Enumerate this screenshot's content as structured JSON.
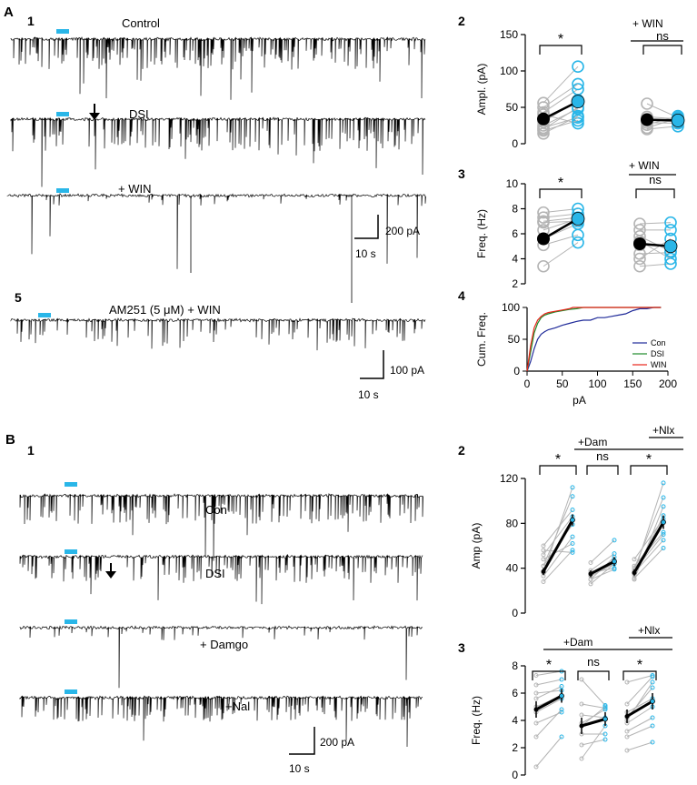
{
  "colors": {
    "cyan": "#29b6e8",
    "grey": "#b4b4b4",
    "black": "#000000",
    "con": "#1f2a99",
    "dsi": "#1e8a2a",
    "win": "#e8261b"
  },
  "panelA": {
    "letter": "A",
    "sub1": "1",
    "sub2": "2",
    "sub3": "3",
    "sub4": "4",
    "sub5": "5",
    "traces": {
      "control": "Control",
      "dsi": "DSI",
      "win": "+ WIN",
      "am251": "AM251 (5 μM) + WIN"
    },
    "scale1": {
      "y": "200 pA",
      "x": "10 s"
    },
    "scale5": {
      "y": "100 pA",
      "x": "10 s"
    },
    "winLabel2": "+ WIN",
    "winLabel3": "+ WIN",
    "sig": "*",
    "ns": "ns"
  },
  "panelB": {
    "letter": "B",
    "sub1": "1",
    "sub2": "2",
    "sub3": "3",
    "traces": {
      "con": "Con",
      "dsi": "DSI",
      "damgo": "+ Damgo",
      "nal": "+Nal"
    },
    "scale": {
      "y": "200 pA",
      "x": "10 s"
    },
    "dam2": "+Dam",
    "nlx2": "+Nlx",
    "dam3": "+Dam",
    "nlx3": "+Nlx",
    "sig": "*",
    "ns": "ns"
  },
  "chart_data": [
    {
      "id": "A2",
      "type": "scatter",
      "ylabel": "Ampl. (pA)",
      "ylim": [
        0,
        150
      ],
      "yticks": [
        0,
        50,
        100,
        150
      ],
      "groups": [
        {
          "annotation": "",
          "significance": "*",
          "pairs": [
            [
              14,
              38
            ],
            [
              20,
              50
            ],
            [
              25,
              48
            ],
            [
              30,
              60
            ],
            [
              43,
              75
            ],
            [
              50,
              82
            ],
            [
              56,
              106
            ],
            [
              40,
              28
            ],
            [
              22,
              36
            ],
            [
              18,
              32
            ]
          ],
          "mean": [
            34,
            58
          ],
          "sem": [
            6,
            9
          ]
        },
        {
          "annotation": "+ WIN",
          "significance": "ns",
          "pairs": [
            [
              55,
              36
            ],
            [
              37,
              34
            ],
            [
              32,
              30
            ],
            [
              29,
              28
            ],
            [
              26,
              38
            ],
            [
              22,
              35
            ],
            [
              20,
              24
            ],
            [
              34,
              32
            ]
          ],
          "mean": [
            33,
            32
          ],
          "sem": [
            4,
            3
          ]
        }
      ]
    },
    {
      "id": "A3",
      "type": "scatter",
      "ylabel": "Freq. (Hz)",
      "ylim": [
        2,
        10
      ],
      "yticks": [
        2,
        4,
        6,
        8,
        10
      ],
      "groups": [
        {
          "annotation": "",
          "significance": "*",
          "pairs": [
            [
              7.7,
              8.0
            ],
            [
              7.3,
              7.6
            ],
            [
              7.0,
              7.3
            ],
            [
              6.9,
              7.0
            ],
            [
              6.3,
              7.2
            ],
            [
              5.6,
              6.8
            ],
            [
              3.4,
              5.3
            ],
            [
              5.1,
              5.9
            ]
          ],
          "mean": [
            5.6,
            7.2
          ],
          "sem": [
            0.5,
            0.4
          ]
        },
        {
          "annotation": "+ WIN",
          "significance": "ns",
          "pairs": [
            [
              6.8,
              6.9
            ],
            [
              6.3,
              6.3
            ],
            [
              5.8,
              4.6
            ],
            [
              5.1,
              5.0
            ],
            [
              4.4,
              4.5
            ],
            [
              3.4,
              3.6
            ],
            [
              5.4,
              4.0
            ],
            [
              4.0,
              5.6
            ]
          ],
          "mean": [
            5.2,
            5.0
          ],
          "sem": [
            0.4,
            0.5
          ]
        }
      ]
    },
    {
      "id": "A4",
      "type": "line",
      "ylabel": "Cum. Freq.",
      "xlabel": "pA",
      "xlim": [
        0,
        200
      ],
      "ylim": [
        0,
        100
      ],
      "xticks": [
        0,
        50,
        100,
        150,
        200
      ],
      "yticks": [
        0,
        50,
        100
      ],
      "series": [
        {
          "name": "Con",
          "x": [
            0,
            5,
            10,
            15,
            20,
            25,
            30,
            40,
            50,
            60,
            70,
            80,
            90,
            100,
            110,
            120,
            130,
            140,
            150,
            160,
            170,
            180,
            190
          ],
          "y": [
            0,
            15,
            35,
            50,
            58,
            62,
            65,
            68,
            72,
            75,
            78,
            80,
            80,
            84,
            84,
            86,
            88,
            90,
            95,
            98,
            98,
            100,
            100
          ]
        },
        {
          "name": "DSI",
          "x": [
            0,
            5,
            10,
            15,
            20,
            25,
            30,
            40,
            50,
            60,
            70,
            80,
            100,
            150,
            190
          ],
          "y": [
            0,
            30,
            60,
            75,
            84,
            88,
            90,
            93,
            95,
            97,
            98,
            100,
            100,
            100,
            100
          ]
        },
        {
          "name": "WIN",
          "x": [
            0,
            5,
            10,
            15,
            20,
            25,
            30,
            40,
            50,
            60,
            65,
            70,
            100,
            150,
            190
          ],
          "y": [
            0,
            40,
            68,
            80,
            86,
            90,
            92,
            94,
            96,
            98,
            100,
            100,
            100,
            100,
            100
          ]
        }
      ]
    },
    {
      "id": "B2",
      "type": "scatter",
      "ylabel": "Amp (pA)",
      "ylim": [
        0,
        120
      ],
      "yticks": [
        0,
        40,
        80,
        120
      ],
      "groups": [
        {
          "annotation": "",
          "significance": "*",
          "pairs": [
            [
              36,
              112
            ],
            [
              42,
              104
            ],
            [
              52,
              86
            ],
            [
              60,
              92
            ],
            [
              33,
              68
            ],
            [
              28,
              56
            ],
            [
              42,
              79
            ],
            [
              56,
              54
            ],
            [
              48,
              62
            ]
          ],
          "mean": [
            37,
            83
          ],
          "sem": [
            3,
            5
          ]
        },
        {
          "annotation": "+Dam",
          "significance": "ns",
          "pairs": [
            [
              26,
              44
            ],
            [
              45,
              65
            ],
            [
              30,
              50
            ],
            [
              38,
              53
            ],
            [
              36,
              40
            ],
            [
              34,
              47
            ],
            [
              33,
              44
            ],
            [
              30,
              39
            ]
          ],
          "mean": [
            35,
            46
          ],
          "sem": [
            3,
            4
          ]
        },
        {
          "annotation": "+Dam +Nlx",
          "significance": "*",
          "pairs": [
            [
              36,
              116
            ],
            [
              40,
              103
            ],
            [
              30,
              95
            ],
            [
              34,
              87
            ],
            [
              48,
              84
            ],
            [
              42,
              72
            ],
            [
              36,
              65
            ],
            [
              31,
              58
            ],
            [
              38,
              70
            ]
          ],
          "mean": [
            36,
            81
          ],
          "sem": [
            3,
            6
          ]
        }
      ]
    },
    {
      "id": "B3",
      "type": "scatter",
      "ylabel": "Freq. (Hz)",
      "ylim": [
        0,
        8
      ],
      "yticks": [
        0,
        2,
        4,
        6,
        8
      ],
      "groups": [
        {
          "annotation": "",
          "significance": "*",
          "pairs": [
            [
              7.3,
              7.6
            ],
            [
              6.6,
              7.0
            ],
            [
              6.0,
              6.2
            ],
            [
              5.6,
              6.5
            ],
            [
              5.0,
              5.8
            ],
            [
              4.6,
              5.6
            ],
            [
              3.8,
              4.6
            ],
            [
              2.8,
              4.8
            ],
            [
              0.6,
              2.8
            ]
          ],
          "mean": [
            4.8,
            5.8
          ],
          "sem": [
            0.6,
            0.5
          ]
        },
        {
          "annotation": "+Dam",
          "significance": "ns",
          "pairs": [
            [
              7.0,
              5.1
            ],
            [
              5.2,
              4.9
            ],
            [
              4.4,
              4.2
            ],
            [
              3.8,
              4.8
            ],
            [
              3.0,
              3.0
            ],
            [
              2.2,
              2.6
            ],
            [
              1.2,
              3.6
            ],
            [
              3.6,
              5.0
            ]
          ],
          "mean": [
            3.6,
            4.1
          ],
          "sem": [
            0.6,
            0.5
          ]
        },
        {
          "annotation": "+Dam +Nlx",
          "significance": "*",
          "pairs": [
            [
              6.8,
              7.3
            ],
            [
              5.2,
              7.2
            ],
            [
              4.2,
              6.4
            ],
            [
              4.6,
              5.6
            ],
            [
              3.8,
              5.0
            ],
            [
              3.2,
              4.2
            ],
            [
              2.8,
              3.6
            ],
            [
              1.8,
              2.4
            ],
            [
              4.0,
              6.8
            ]
          ],
          "mean": [
            4.3,
            5.4
          ],
          "sem": [
            0.5,
            0.6
          ]
        }
      ]
    }
  ]
}
